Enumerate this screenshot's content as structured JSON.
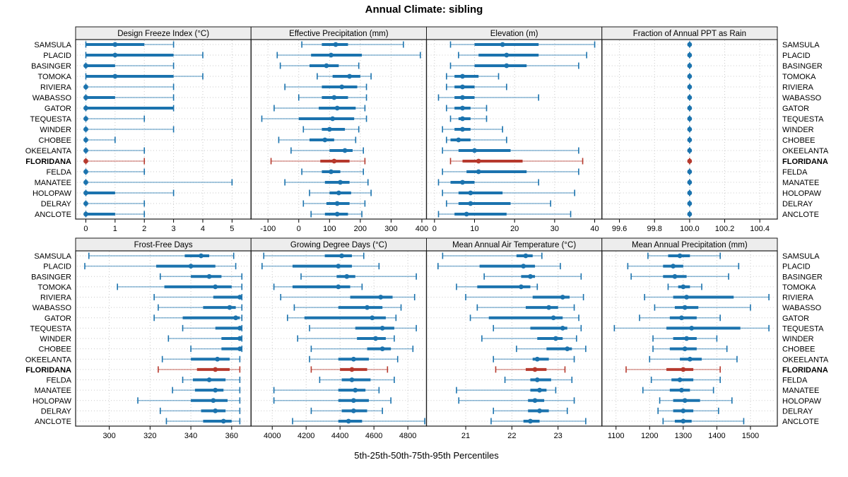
{
  "title": "Annual Climate: sibling",
  "footer": "5th-25th-50th-75th-95th Percentiles",
  "colors": {
    "blue": "#1b73ae",
    "red": "#b6392d",
    "grid": "#c9c9c9",
    "header_bg": "#ededed",
    "border": "#1a1a1a"
  },
  "chart_data": {
    "type": "trellis-percentile-dotplot",
    "percentile_labels": [
      "5th",
      "25th",
      "50th",
      "75th",
      "95th"
    ],
    "highlight_station": "FLORIDANA",
    "stations": [
      "SAMSULA",
      "PLACID",
      "BASINGER",
      "TOMOKA",
      "RIVIERA",
      "WABASSO",
      "GATOR",
      "TEQUESTA",
      "WINDER",
      "CHOBEE",
      "OKEELANTA",
      "FLORIDANA",
      "FELDA",
      "MANATEE",
      "HOLOPAW",
      "DELRAY",
      "ANCLOTE"
    ],
    "panels": [
      {
        "key": "design-freeze-index",
        "title": "Design Freeze Index (°C)",
        "row": 0,
        "col": 0,
        "xlim": [
          -0.35,
          5.65
        ],
        "ticks": [
          0,
          1,
          2,
          3,
          4,
          5
        ],
        "tick_labels": [
          "0",
          "1",
          "2",
          "3",
          "4",
          "5"
        ],
        "data": [
          [
            0,
            0,
            1,
            2,
            3
          ],
          [
            0,
            0,
            1,
            3,
            4
          ],
          [
            0,
            0,
            0,
            1,
            3
          ],
          [
            0,
            0,
            1,
            3,
            4
          ],
          [
            0,
            0,
            0,
            0,
            3
          ],
          [
            0,
            0,
            0,
            1,
            3
          ],
          [
            0,
            0,
            0,
            3,
            3
          ],
          [
            0,
            0,
            0,
            0,
            2
          ],
          [
            0,
            0,
            0,
            0,
            3
          ],
          [
            0,
            0,
            0,
            0,
            1
          ],
          [
            0,
            0,
            0,
            0,
            2
          ],
          [
            0,
            0,
            0,
            0,
            2
          ],
          [
            0,
            0,
            0,
            0,
            2
          ],
          [
            0,
            0,
            0,
            0,
            5
          ],
          [
            0,
            0,
            0,
            1,
            3
          ],
          [
            0,
            0,
            0,
            0,
            2
          ],
          [
            0,
            0,
            0,
            1,
            2
          ]
        ]
      },
      {
        "key": "effective-precipitation",
        "title": "Effective Precipitation (mm)",
        "row": 0,
        "col": 1,
        "xlim": [
          -155,
          415
        ],
        "ticks": [
          -100,
          0,
          100,
          200,
          300,
          400
        ],
        "tick_labels": [
          "-100",
          "0",
          "100",
          "200",
          "300",
          "400"
        ],
        "data": [
          [
            10,
            75,
            120,
            160,
            340
          ],
          [
            -70,
            40,
            105,
            205,
            395
          ],
          [
            -60,
            35,
            90,
            130,
            195
          ],
          [
            60,
            110,
            165,
            200,
            235
          ],
          [
            -45,
            75,
            140,
            190,
            220
          ],
          [
            0,
            75,
            115,
            160,
            220
          ],
          [
            -80,
            65,
            125,
            185,
            215
          ],
          [
            -120,
            0,
            110,
            180,
            220
          ],
          [
            15,
            75,
            100,
            150,
            195
          ],
          [
            -65,
            35,
            85,
            115,
            185
          ],
          [
            -25,
            100,
            150,
            175,
            210
          ],
          [
            -90,
            70,
            115,
            165,
            215
          ],
          [
            10,
            75,
            105,
            135,
            210
          ],
          [
            -45,
            85,
            135,
            165,
            225
          ],
          [
            35,
            100,
            130,
            170,
            235
          ],
          [
            15,
            90,
            125,
            165,
            215
          ],
          [
            40,
            85,
            125,
            160,
            205
          ]
        ]
      },
      {
        "key": "elevation",
        "title": "Elevation (m)",
        "row": 0,
        "col": 2,
        "xlim": [
          -2,
          41.8
        ],
        "ticks": [
          0,
          10,
          20,
          30,
          40
        ],
        "tick_labels": [
          "0",
          "10",
          "20",
          "30",
          "40"
        ],
        "data": [
          [
            4,
            10,
            17,
            26,
            40
          ],
          [
            6,
            11,
            18,
            26,
            38
          ],
          [
            4,
            10,
            18,
            23,
            36
          ],
          [
            3,
            5,
            7,
            11,
            16
          ],
          [
            3,
            5,
            7,
            10,
            18
          ],
          [
            1,
            5,
            7,
            10,
            26
          ],
          [
            3,
            5,
            7,
            9,
            13
          ],
          [
            4,
            6,
            7,
            9,
            13
          ],
          [
            2,
            5,
            7,
            9,
            17
          ],
          [
            3,
            4,
            6,
            9,
            18
          ],
          [
            2,
            6,
            10,
            19,
            36
          ],
          [
            4,
            7,
            11,
            22,
            37
          ],
          [
            2,
            8,
            11,
            23,
            36
          ],
          [
            1,
            4,
            7,
            10,
            26
          ],
          [
            2,
            6,
            9,
            17,
            35
          ],
          [
            3,
            6,
            9,
            19,
            29
          ],
          [
            1,
            5,
            8,
            18,
            34
          ]
        ]
      },
      {
        "key": "fraction-ppt-as-rain",
        "title": "Fraction of Annual PPT as Rain",
        "row": 0,
        "col": 3,
        "xlim": [
          99.5,
          100.5
        ],
        "ticks": [
          99.6,
          99.8,
          100.0,
          100.2,
          100.4
        ],
        "tick_labels": [
          "99.6",
          "99.8",
          "100.0",
          "100.2",
          "100.4"
        ],
        "data": [
          [
            100,
            100,
            100,
            100,
            100
          ],
          [
            100,
            100,
            100,
            100,
            100
          ],
          [
            100,
            100,
            100,
            100,
            100
          ],
          [
            100,
            100,
            100,
            100,
            100
          ],
          [
            100,
            100,
            100,
            100,
            100
          ],
          [
            100,
            100,
            100,
            100,
            100
          ],
          [
            100,
            100,
            100,
            100,
            100
          ],
          [
            100,
            100,
            100,
            100,
            100
          ],
          [
            100,
            100,
            100,
            100,
            100
          ],
          [
            100,
            100,
            100,
            100,
            100
          ],
          [
            100,
            100,
            100,
            100,
            100
          ],
          [
            100,
            100,
            100,
            100,
            100
          ],
          [
            100,
            100,
            100,
            100,
            100
          ],
          [
            100,
            100,
            100,
            100,
            100
          ],
          [
            100,
            100,
            100,
            100,
            100
          ],
          [
            100,
            100,
            100,
            100,
            100
          ],
          [
            100,
            100,
            100,
            100,
            100
          ]
        ]
      },
      {
        "key": "frost-free-days",
        "title": "Frost-Free Days",
        "row": 1,
        "col": 0,
        "xlim": [
          283.5,
          369.5
        ],
        "ticks": [
          300,
          320,
          340,
          360
        ],
        "tick_labels": [
          "300",
          "320",
          "340",
          "360"
        ],
        "data": [
          [
            290,
            337,
            345,
            349,
            361
          ],
          [
            288,
            323,
            340,
            352,
            362
          ],
          [
            325,
            340,
            349,
            355,
            365
          ],
          [
            304,
            327,
            352,
            360,
            365
          ],
          [
            322,
            351,
            364,
            365,
            365
          ],
          [
            324,
            346,
            359,
            362,
            365
          ],
          [
            322,
            336,
            362,
            364,
            365
          ],
          [
            336,
            352,
            364,
            365,
            365
          ],
          [
            329,
            355,
            364,
            365,
            365
          ],
          [
            340,
            355,
            364,
            365,
            365
          ],
          [
            326,
            340,
            353,
            359,
            364
          ],
          [
            324,
            343,
            352,
            359,
            364
          ],
          [
            336,
            341,
            349,
            357,
            364
          ],
          [
            331,
            342,
            352,
            356,
            364
          ],
          [
            314,
            340,
            351,
            358,
            364
          ],
          [
            325,
            345,
            352,
            357,
            364
          ],
          [
            328,
            346,
            356,
            360,
            364
          ]
        ]
      },
      {
        "key": "growing-degree-days",
        "title": "Growing Degree Days (°C)",
        "row": 1,
        "col": 1,
        "xlim": [
          3875,
          4910
        ],
        "ticks": [
          4000,
          4200,
          4400,
          4600,
          4800
        ],
        "tick_labels": [
          "4000",
          "4200",
          "4400",
          "4600",
          "4800"
        ],
        "data": [
          [
            3950,
            4310,
            4410,
            4470,
            4540
          ],
          [
            3940,
            4120,
            4390,
            4470,
            4630
          ],
          [
            4170,
            4380,
            4440,
            4490,
            4850
          ],
          [
            4010,
            4120,
            4390,
            4460,
            4530
          ],
          [
            4050,
            4460,
            4640,
            4710,
            4840
          ],
          [
            4130,
            4390,
            4560,
            4650,
            4760
          ],
          [
            4090,
            4190,
            4590,
            4670,
            4730
          ],
          [
            4220,
            4490,
            4650,
            4720,
            4850
          ],
          [
            4150,
            4500,
            4610,
            4670,
            4720
          ],
          [
            4230,
            4560,
            4650,
            4700,
            4830
          ],
          [
            4220,
            4390,
            4480,
            4570,
            4740
          ],
          [
            4230,
            4400,
            4470,
            4560,
            4680
          ],
          [
            4280,
            4410,
            4470,
            4580,
            4720
          ],
          [
            4010,
            4390,
            4490,
            4550,
            4630
          ],
          [
            4010,
            4390,
            4480,
            4570,
            4700
          ],
          [
            4230,
            4410,
            4480,
            4560,
            4650
          ],
          [
            4120,
            4390,
            4450,
            4530,
            4900
          ]
        ]
      },
      {
        "key": "mean-annual-air-temperature",
        "title": "Mean Annual Air Temperature (°C)",
        "row": 1,
        "col": 2,
        "xlim": [
          20.15,
          23.95
        ],
        "ticks": [
          21,
          22,
          23
        ],
        "tick_labels": [
          "21",
          "22",
          "23"
        ],
        "data": [
          [
            20.5,
            22.1,
            22.3,
            22.45,
            22.65
          ],
          [
            20.4,
            21.3,
            22.25,
            22.5,
            23.05
          ],
          [
            21.4,
            22.2,
            22.4,
            22.5,
            23.5
          ],
          [
            20.8,
            21.25,
            22.2,
            22.4,
            22.55
          ],
          [
            21.0,
            22.45,
            23.1,
            23.25,
            23.55
          ],
          [
            21.25,
            22.3,
            22.8,
            23.0,
            23.35
          ],
          [
            21.1,
            21.5,
            22.9,
            23.1,
            23.45
          ],
          [
            21.6,
            22.4,
            23.1,
            23.2,
            23.5
          ],
          [
            21.35,
            22.55,
            22.95,
            23.1,
            23.4
          ],
          [
            22.1,
            22.75,
            23.2,
            23.3,
            23.6
          ],
          [
            21.6,
            22.45,
            22.55,
            22.8,
            23.35
          ],
          [
            21.65,
            22.3,
            22.5,
            22.75,
            23.15
          ],
          [
            21.85,
            22.4,
            22.55,
            22.85,
            23.3
          ],
          [
            20.8,
            22.4,
            22.6,
            22.75,
            22.95
          ],
          [
            20.85,
            22.35,
            22.5,
            22.7,
            23.35
          ],
          [
            21.6,
            22.35,
            22.6,
            22.8,
            23.2
          ],
          [
            21.55,
            22.25,
            22.4,
            22.6,
            23.6
          ]
        ]
      },
      {
        "key": "mean-annual-precipitation",
        "title": "Mean Annual Precipitation (mm)",
        "row": 1,
        "col": 3,
        "xlim": [
          1058,
          1580
        ],
        "ticks": [
          1100,
          1200,
          1300,
          1400,
          1500
        ],
        "tick_labels": [
          "1100",
          "1200",
          "1300",
          "1400",
          "1500"
        ],
        "data": [
          [
            1195,
            1255,
            1290,
            1320,
            1410
          ],
          [
            1135,
            1240,
            1270,
            1300,
            1465
          ],
          [
            1145,
            1240,
            1275,
            1310,
            1435
          ],
          [
            1255,
            1285,
            1300,
            1320,
            1355
          ],
          [
            1185,
            1270,
            1310,
            1450,
            1555
          ],
          [
            1215,
            1275,
            1305,
            1345,
            1500
          ],
          [
            1170,
            1260,
            1295,
            1340,
            1410
          ],
          [
            1095,
            1250,
            1325,
            1470,
            1555
          ],
          [
            1210,
            1270,
            1310,
            1340,
            1400
          ],
          [
            1210,
            1260,
            1305,
            1340,
            1430
          ],
          [
            1200,
            1290,
            1320,
            1355,
            1460
          ],
          [
            1130,
            1250,
            1300,
            1330,
            1410
          ],
          [
            1205,
            1265,
            1290,
            1330,
            1410
          ],
          [
            1180,
            1260,
            1295,
            1320,
            1390
          ],
          [
            1230,
            1270,
            1305,
            1350,
            1445
          ],
          [
            1225,
            1270,
            1300,
            1330,
            1405
          ],
          [
            1240,
            1275,
            1300,
            1325,
            1480
          ]
        ]
      }
    ]
  }
}
